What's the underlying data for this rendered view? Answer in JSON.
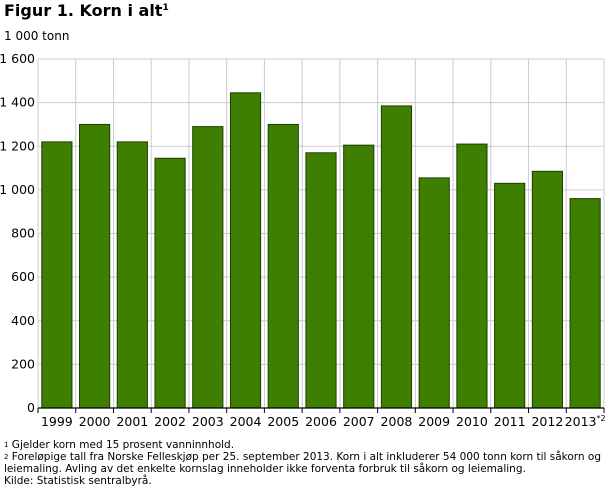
{
  "title": "Figur 1. Korn i alt",
  "title_note": "1",
  "unit_label": "1 000 tonn",
  "colors": {
    "bar": "#3e7e00",
    "bar_edge": "#1f3f00",
    "grid": "#cccccc",
    "axis": "#000000"
  },
  "chart_data": {
    "type": "bar",
    "title": "Figur 1. Korn i alt",
    "ylabel": "1 000 tonn",
    "xlabel": "",
    "categories": [
      "1999",
      "2000",
      "2001",
      "2002",
      "2003",
      "2004",
      "2005",
      "2006",
      "2007",
      "2008",
      "2009",
      "2010",
      "2011",
      "2012",
      "2013*2"
    ],
    "values": [
      1220,
      1300,
      1220,
      1145,
      1290,
      1445,
      1300,
      1170,
      1205,
      1385,
      1055,
      1210,
      1030,
      1085,
      960
    ],
    "ylim": [
      0,
      1600
    ],
    "yticks": [
      0,
      200,
      400,
      600,
      800,
      1000,
      1200,
      1400,
      1600
    ],
    "ytick_labels": [
      "0",
      "200",
      "400",
      "600",
      "800",
      "1 000",
      "1 200",
      "1 400",
      "1 600"
    ],
    "grid": true
  },
  "footnotes": {
    "n1_mark": "1",
    "n1_text": " Gjelder korn med 15 prosent vanninnhold.",
    "n2_mark": "2",
    "n2_line1": " Foreløpige tall fra Norske Felleskjøp per 25. september 2013.  Korn i alt inkluderer 54 000 tonn korn til såkorn og",
    "n2_line2": "leiemaling. Avling av det enkelte kornslag inneholder ikke forventa forbruk til såkorn og leiemaling.",
    "source": "Kilde: Statistisk sentralbyrå."
  }
}
